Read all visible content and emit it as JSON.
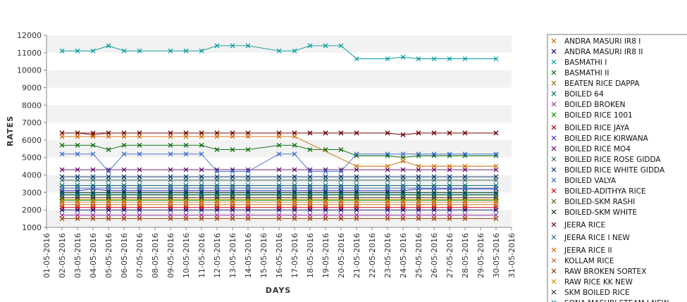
{
  "chart_data": {
    "type": "line",
    "xlabel": "DAYS",
    "ylabel": "RATES",
    "ylim": [
      1000,
      12000
    ],
    "yticks": [
      1000,
      2000,
      3000,
      4000,
      5000,
      6000,
      7000,
      8000,
      9000,
      10000,
      11000,
      12000
    ],
    "grid": "alternating horizontal bands",
    "legend": "right",
    "x": [
      "01-05-2016",
      "02-05-2016",
      "03-05-2016",
      "04-05-2016",
      "05-05-2016",
      "06-05-2016",
      "07-05-2016",
      "08-05-2016",
      "09-05-2016",
      "10-05-2016",
      "11-05-2016",
      "12-05-2016",
      "13-05-2016",
      "14-05-2016",
      "15-05-2016",
      "16-05-2016",
      "17-05-2016",
      "18-05-2016",
      "19-05-2016",
      "20-05-2016",
      "21-05-2016",
      "22-05-2016",
      "23-05-2016",
      "24-05-2016",
      "25-05-2016",
      "26-05-2016",
      "27-05-2016",
      "28-05-2016",
      "29-05-2016",
      "30-05-2016",
      "31-05-2016"
    ],
    "series": [
      {
        "name": "ANDRA MASURI IR8 I",
        "color": "#cc6600",
        "values": [
          null,
          2300,
          2300,
          2300,
          2300,
          2300,
          2300,
          null,
          2300,
          2300,
          2300,
          2300,
          2300,
          2300,
          null,
          2300,
          2300,
          2300,
          2300,
          2300,
          2300,
          null,
          2300,
          2300,
          2300,
          2300,
          2300,
          2300,
          null,
          2300,
          null
        ]
      },
      {
        "name": "ANDRA MASURI IR8 II",
        "color": "#000080",
        "values": [
          null,
          2000,
          2000,
          2000,
          2000,
          2000,
          2000,
          null,
          2000,
          2000,
          2000,
          2000,
          2000,
          2000,
          null,
          2000,
          2000,
          2000,
          2000,
          2000,
          2000,
          null,
          2000,
          2000,
          2000,
          2000,
          2000,
          2000,
          null,
          2000,
          null
        ]
      },
      {
        "name": "BASMATHI I",
        "color": "#009999",
        "values": [
          null,
          11100,
          11100,
          11100,
          11400,
          11100,
          11100,
          null,
          11100,
          11100,
          11100,
          11400,
          11400,
          11400,
          null,
          11100,
          11100,
          11400,
          11400,
          11400,
          10650,
          null,
          10650,
          10750,
          10650,
          10650,
          10650,
          10650,
          null,
          10650,
          null
        ]
      },
      {
        "name": "BASMATHI II",
        "color": "#006600",
        "values": [
          null,
          5700,
          5700,
          5700,
          5450,
          5700,
          5700,
          null,
          5700,
          5700,
          5700,
          5450,
          5450,
          5450,
          null,
          5700,
          5700,
          5450,
          5450,
          5450,
          5100,
          null,
          5100,
          5000,
          5100,
          5100,
          5100,
          5100,
          null,
          5100,
          null
        ]
      },
      {
        "name": "BEATEN RICE DAPPA",
        "color": "#996600",
        "values": [
          null,
          2700,
          2700,
          2700,
          2700,
          2700,
          2700,
          null,
          2700,
          2700,
          2700,
          2700,
          2700,
          2700,
          null,
          2700,
          2700,
          2700,
          2700,
          2700,
          2700,
          null,
          2700,
          2700,
          2700,
          2700,
          2700,
          2700,
          null,
          2700,
          null
        ]
      },
      {
        "name": "BOILED 64",
        "color": "#006666",
        "values": [
          null,
          3400,
          3400,
          3400,
          3400,
          3400,
          3400,
          null,
          3400,
          3400,
          3400,
          3400,
          3400,
          3400,
          null,
          3400,
          3400,
          3400,
          3400,
          3400,
          3400,
          null,
          3400,
          3400,
          3400,
          3400,
          3400,
          3400,
          null,
          3400,
          null
        ]
      },
      {
        "name": "BOILED BROKEN",
        "color": "#993399",
        "values": [
          null,
          1700,
          1700,
          1700,
          1700,
          1700,
          1700,
          null,
          1700,
          1700,
          1700,
          1700,
          1700,
          1700,
          null,
          1700,
          1700,
          1700,
          1700,
          1700,
          1700,
          null,
          1700,
          1700,
          1700,
          1700,
          1700,
          1700,
          null,
          1700,
          null
        ]
      },
      {
        "name": "BOILED RICE 1001",
        "color": "#009900",
        "values": [
          null,
          2550,
          2550,
          2550,
          2550,
          2550,
          2550,
          null,
          2550,
          2550,
          2550,
          2550,
          2550,
          2550,
          null,
          2550,
          2550,
          2550,
          2550,
          2550,
          2550,
          null,
          2550,
          2550,
          2550,
          2550,
          2550,
          2550,
          null,
          2550,
          null
        ]
      },
      {
        "name": "BOILED RICE JAYA",
        "color": "#990000",
        "values": [
          null,
          6400,
          6400,
          6300,
          6400,
          6400,
          6400,
          null,
          6400,
          6400,
          6400,
          6400,
          6400,
          6400,
          null,
          6400,
          6400,
          6400,
          6400,
          6400,
          6400,
          null,
          6400,
          6300,
          6400,
          6400,
          6400,
          6400,
          null,
          6400,
          null
        ]
      },
      {
        "name": "BOILED RICE KIRWANA",
        "color": "#3333cc",
        "values": [
          null,
          3100,
          3100,
          3200,
          3100,
          3100,
          3100,
          null,
          3100,
          3100,
          3100,
          3100,
          3100,
          3100,
          null,
          3100,
          3100,
          3100,
          3100,
          3100,
          3100,
          null,
          3100,
          3100,
          3200,
          3200,
          3200,
          3200,
          null,
          3200,
          null
        ]
      },
      {
        "name": "BOILED RICE MO4",
        "color": "#660066",
        "values": [
          null,
          4300,
          4300,
          4300,
          4300,
          4300,
          4300,
          null,
          4300,
          4300,
          4300,
          4300,
          4300,
          4300,
          null,
          4300,
          4300,
          4300,
          4300,
          4300,
          4300,
          null,
          4300,
          4300,
          4300,
          4300,
          4300,
          4300,
          null,
          4300,
          null
        ]
      },
      {
        "name": "BOILED RICE ROSE GIDDA",
        "color": "#336666",
        "values": [
          null,
          3700,
          3700,
          3700,
          3700,
          3700,
          3700,
          null,
          3700,
          3700,
          3700,
          3700,
          3700,
          3700,
          null,
          3700,
          3700,
          3700,
          3700,
          3700,
          3700,
          null,
          3700,
          3700,
          3700,
          3700,
          3700,
          3700,
          null,
          3700,
          null
        ]
      },
      {
        "name": "BOILED RICE WHITE GIDDA",
        "color": "#003366",
        "values": [
          null,
          3900,
          3900,
          3900,
          3900,
          3900,
          3900,
          null,
          3900,
          3900,
          3900,
          3900,
          3900,
          3900,
          null,
          3900,
          3900,
          3900,
          3900,
          3900,
          3900,
          null,
          3900,
          3900,
          3900,
          3900,
          3900,
          3900,
          null,
          3900,
          null
        ]
      },
      {
        "name": "BOILED VALYA",
        "color": "#3366cc",
        "values": [
          null,
          5200,
          5200,
          5200,
          4200,
          5200,
          5200,
          null,
          5200,
          5200,
          5200,
          4200,
          4200,
          4200,
          null,
          5200,
          5200,
          4200,
          4200,
          4200,
          5200,
          null,
          5200,
          5200,
          5200,
          5200,
          5200,
          5200,
          null,
          5200,
          null
        ]
      },
      {
        "name": "BOILED-ADITHYA RICE",
        "color": "#cc0000",
        "values": [
          null,
          2150,
          2150,
          2150,
          2150,
          2150,
          2150,
          null,
          2150,
          2150,
          2150,
          2150,
          2150,
          2150,
          null,
          2150,
          2150,
          2150,
          2150,
          2150,
          2150,
          null,
          2150,
          2150,
          2150,
          2150,
          2150,
          2150,
          null,
          2150,
          null
        ]
      },
      {
        "name": "BOILED-SKM RASHI",
        "color": "#336600",
        "values": [
          null,
          2850,
          2850,
          2850,
          2850,
          2850,
          2850,
          null,
          2850,
          2850,
          2850,
          2850,
          2850,
          2850,
          null,
          2850,
          2850,
          2850,
          2850,
          2850,
          2850,
          null,
          2850,
          2850,
          2850,
          2850,
          2850,
          2850,
          null,
          2850,
          null
        ]
      },
      {
        "name": "BOILED-SKM WHITE",
        "color": "#003300",
        "values": [
          null,
          3000,
          3000,
          3000,
          3000,
          3000,
          3000,
          null,
          3000,
          3000,
          3000,
          3000,
          3000,
          3000,
          null,
          3000,
          3000,
          3000,
          3000,
          3000,
          3000,
          null,
          3000,
          3000,
          3000,
          3000,
          3000,
          3000,
          null,
          3000,
          null
        ]
      },
      {
        "name": "JEERA RICE",
        "color": "#660000",
        "values": [
          null,
          6400,
          6400,
          6400,
          6400,
          6400,
          6400,
          null,
          6400,
          6400,
          6400,
          6400,
          6400,
          6400,
          null,
          6400,
          6400,
          6400,
          6400,
          6400,
          6400,
          null,
          6400,
          6300,
          6400,
          6400,
          6400,
          6400,
          null,
          6400,
          null
        ]
      },
      {
        "name": "JEERA RICE I NEW",
        "color": "#336699",
        "values": [
          null,
          3250,
          3250,
          3250,
          3250,
          3250,
          3250,
          null,
          3250,
          3250,
          3250,
          3250,
          3250,
          3250,
          null,
          3250,
          3250,
          3250,
          3250,
          3250,
          3250,
          null,
          3250,
          3250,
          3250,
          3250,
          3250,
          3250,
          null,
          3250,
          null
        ]
      },
      {
        "name": "JEERA RICE II",
        "color": "#cc6600",
        "values": [
          null,
          6200,
          6200,
          6200,
          6200,
          6200,
          6200,
          null,
          6200,
          6200,
          6200,
          6200,
          6200,
          6200,
          null,
          6200,
          6200,
          null,
          null,
          null,
          4500,
          null,
          4500,
          4800,
          4500,
          4500,
          4500,
          4500,
          null,
          4500,
          null
        ]
      },
      {
        "name": "KOLLAM RICE",
        "color": "#cc6633",
        "values": [
          null,
          2450,
          2450,
          2450,
          2450,
          2450,
          2450,
          null,
          2450,
          2450,
          2450,
          2450,
          2450,
          2450,
          null,
          2450,
          2450,
          2450,
          2450,
          2450,
          2450,
          null,
          2450,
          2450,
          2450,
          2450,
          2450,
          2450,
          null,
          2450,
          null
        ]
      },
      {
        "name": "RAW BROKEN SORTEX",
        "color": "#993300",
        "values": [
          null,
          1500,
          1500,
          1500,
          1500,
          1500,
          1500,
          null,
          1500,
          1500,
          1500,
          1500,
          1500,
          1500,
          null,
          1500,
          1500,
          1500,
          1500,
          1500,
          1500,
          null,
          1500,
          1500,
          1500,
          1500,
          1500,
          1500,
          null,
          1500,
          null
        ]
      },
      {
        "name": "RAW RICE KK NEW",
        "color": "#cc9900",
        "values": [
          null,
          2600,
          2600,
          2600,
          2600,
          2600,
          2600,
          null,
          2600,
          2600,
          2600,
          2600,
          2600,
          2600,
          null,
          2600,
          2600,
          2600,
          2600,
          2600,
          2600,
          null,
          2600,
          2600,
          2600,
          2600,
          2600,
          2600,
          null,
          2600,
          null
        ]
      },
      {
        "name": "SKM BOILED RICE",
        "color": "#333333",
        "values": [
          null,
          2700,
          2700,
          2700,
          2700,
          2700,
          2700,
          null,
          2700,
          2700,
          2700,
          2700,
          2700,
          2700,
          null,
          2700,
          2700,
          2700,
          2700,
          2700,
          2700,
          null,
          2700,
          2700,
          2700,
          2700,
          2700,
          2700,
          null,
          2700,
          null
        ]
      },
      {
        "name": "SONA MASURI STEAM I NEW",
        "color": "#006699",
        "values": [
          null,
          2900,
          2900,
          2900,
          2900,
          2900,
          2900,
          null,
          2900,
          2900,
          2900,
          2900,
          2900,
          2900,
          null,
          2900,
          2900,
          2900,
          2900,
          2900,
          2900,
          null,
          2900,
          2900,
          2900,
          2900,
          2900,
          2900,
          null,
          2900,
          null
        ]
      }
    ]
  }
}
